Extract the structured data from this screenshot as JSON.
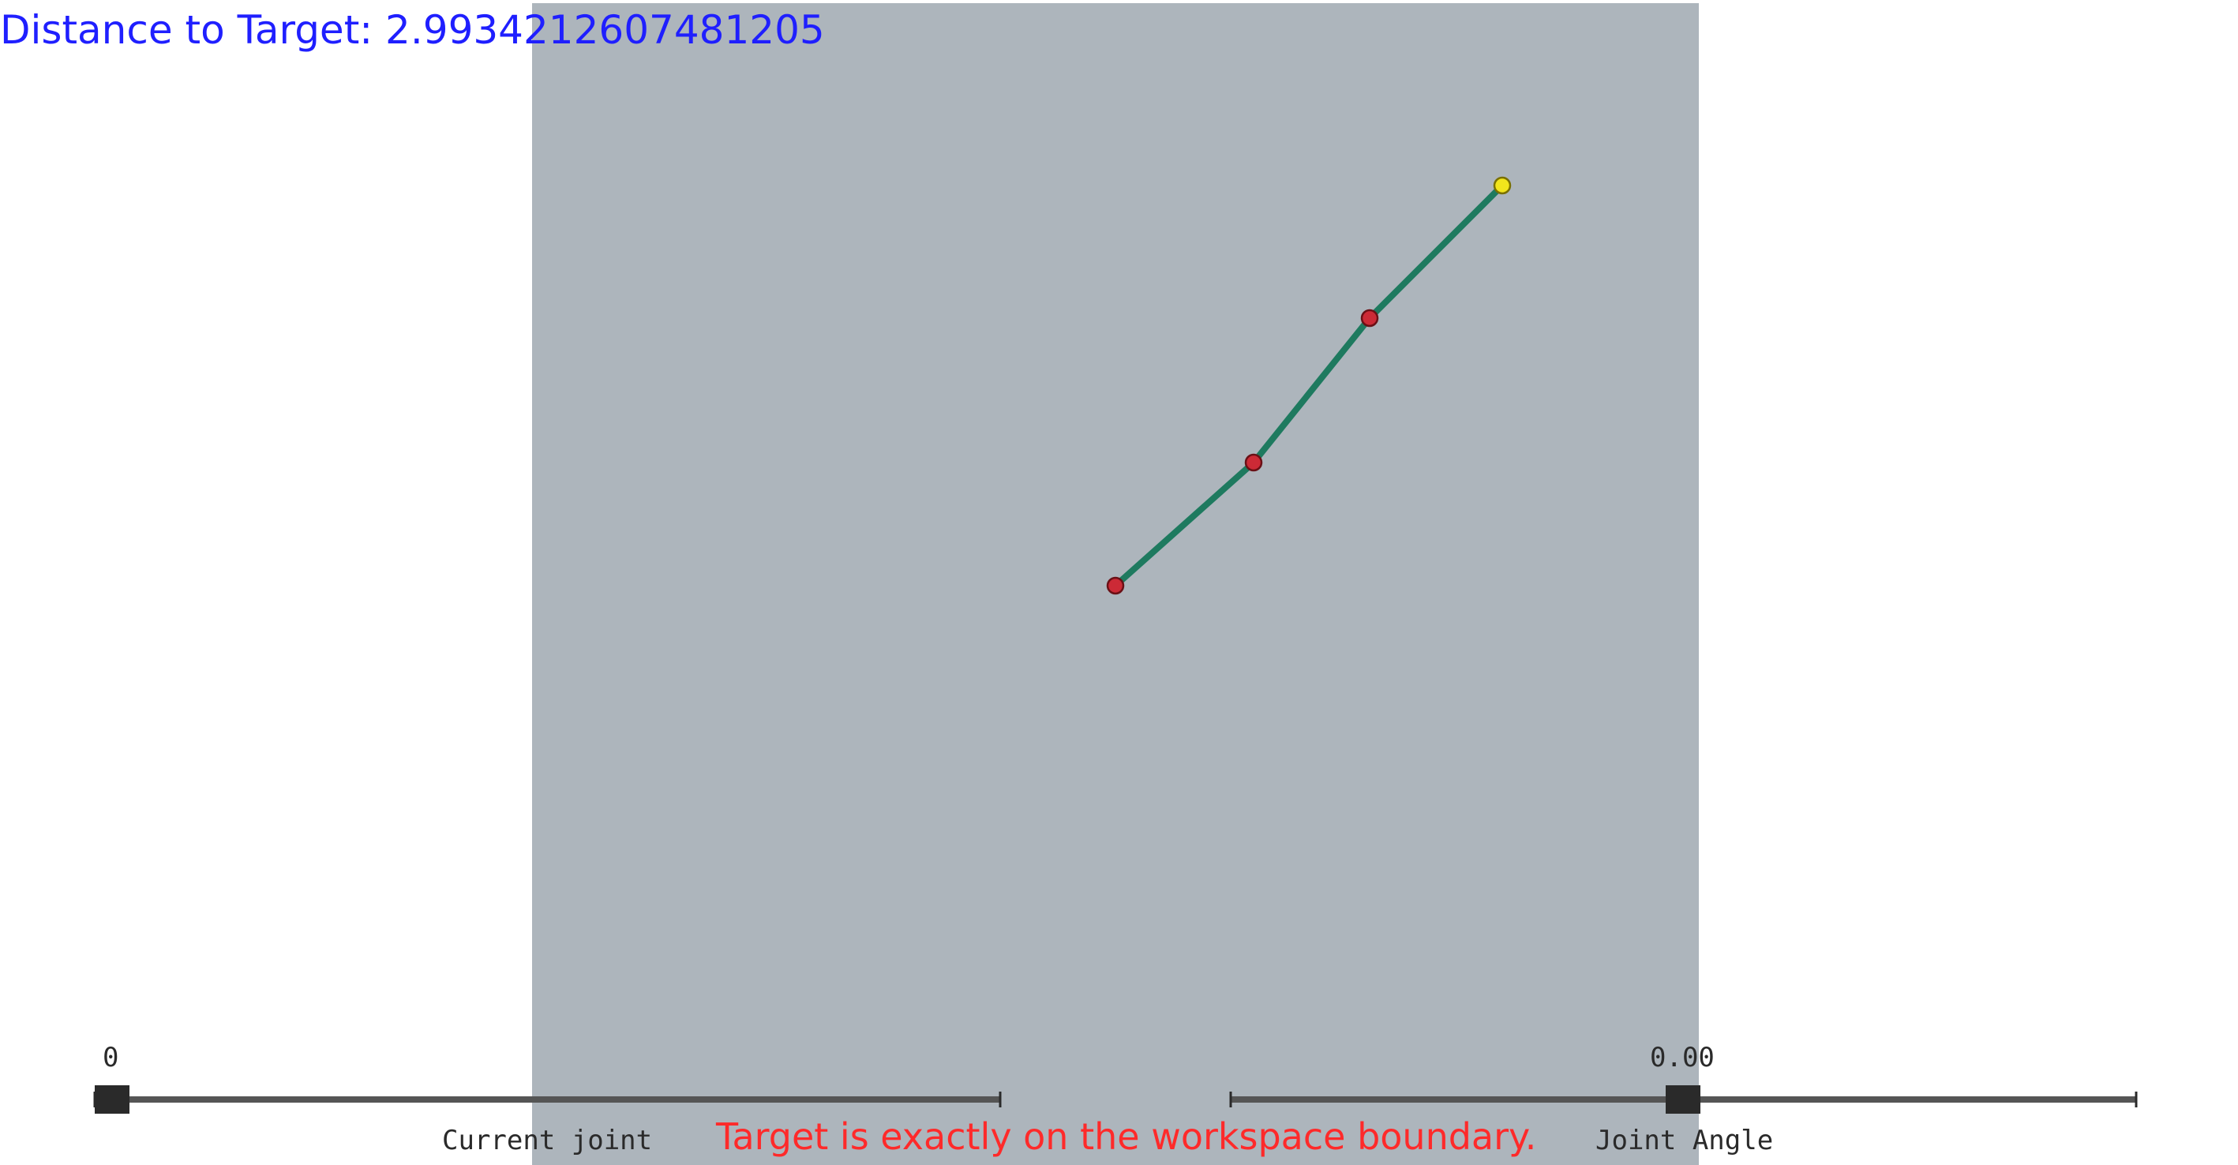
{
  "status": {
    "distance_prefix": "Distance to Target: ",
    "distance_value": "2.9934212607481205",
    "warning": "Target is exactly on the workspace boundary."
  },
  "controls": {
    "joint_slider": {
      "label": "Current joint",
      "value_text": "0",
      "fraction": 0.0
    },
    "angle_slider": {
      "label": "Joint Angle",
      "value_text": "0.00",
      "fraction": 0.5
    }
  },
  "arm": {
    "link_color": "#1e7a5f",
    "joint_color": "#cc2a36",
    "end_effector_color": "#f2e51c"
  },
  "colors": {
    "workspace": "#adb5bc",
    "distance_text": "#1f1fff",
    "warning_text": "#ff2a2a",
    "slider": "#555555",
    "handle": "#2a2a2a"
  }
}
